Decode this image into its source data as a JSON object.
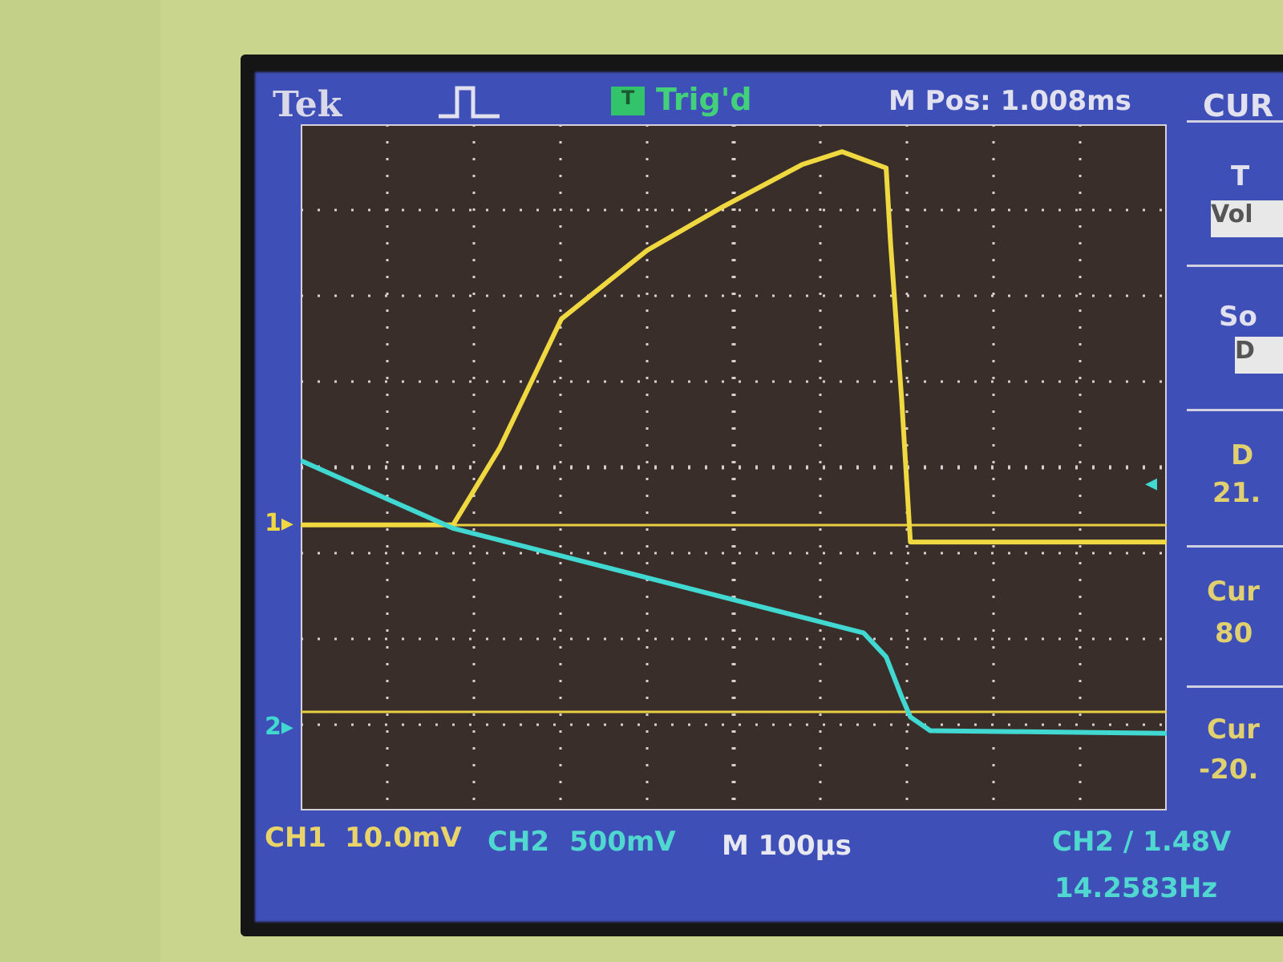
{
  "header": {
    "brand": "Tek",
    "trigger_icon": "T",
    "trigger_status": "Trig'd",
    "horizontal_position": "M Pos: 1.008ms",
    "menu_title": "CUR"
  },
  "side_menu": {
    "type_label": "T",
    "type_value": "Vol",
    "source_label": "So",
    "source_value": "D",
    "delta_label": "D",
    "delta_value": "21.",
    "cursor1_label": "Cur",
    "cursor1_value": "80",
    "cursor2_label": "Cur",
    "cursor2_value": "-20."
  },
  "footer": {
    "ch1_label": "CH1",
    "ch1_scale": "10.0mV",
    "ch2_label": "CH2",
    "ch2_scale": "500mV",
    "timebase": "M 100µs",
    "trigger_info": "CH2 ∕ 1.48V",
    "frequency": "14.2583Hz"
  },
  "colors": {
    "ch1": "#f0d840",
    "ch2": "#40d8d0",
    "screen": "#3f4fb8",
    "graticule": "#3a2e2a"
  },
  "chart_data": {
    "type": "line",
    "title": "",
    "xlabel": "",
    "ylabel": "",
    "grid": true,
    "divisions": {
      "x": 10,
      "y": 8
    },
    "x_unit": "µs",
    "xlim": [
      0,
      1000
    ],
    "series": [
      {
        "name": "CH1",
        "unit": "mV",
        "per_div": 10,
        "color": "#f0d840",
        "x": [
          0,
          176,
          230,
          301,
          400,
          486,
          579,
          625,
          676,
          681,
          694,
          704,
          710,
          1000
        ],
        "y": [
          0,
          0,
          9,
          24,
          32,
          37,
          42,
          43.5,
          41.6,
          33,
          14.5,
          -2,
          -2,
          -2
        ]
      },
      {
        "name": "CH2",
        "unit": "mV",
        "per_div": 500,
        "color": "#40d8d0",
        "x": [
          0,
          176,
          650,
          676,
          694,
          704,
          727,
          1000
        ],
        "y": [
          1565,
          1170,
          560,
          420,
          187,
          70,
          -10,
          -25
        ]
      }
    ],
    "markers": {
      "ch1_ground_label": "1",
      "ch2_ground_label": "2"
    }
  }
}
